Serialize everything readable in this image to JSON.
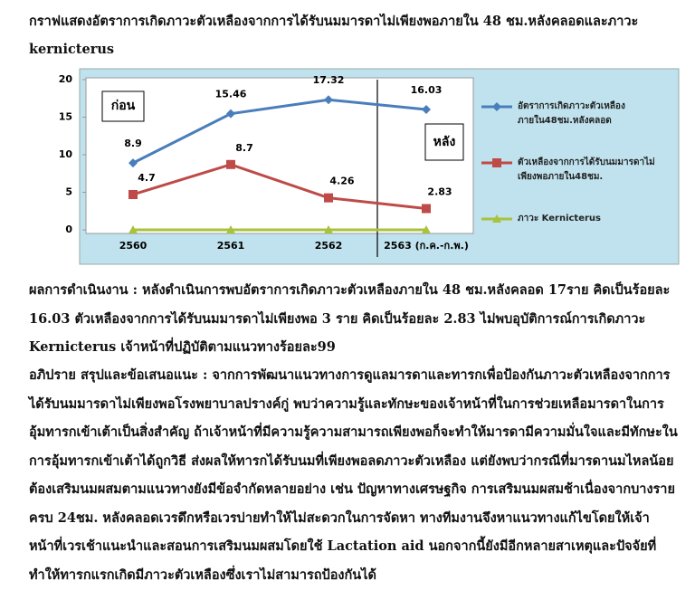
{
  "heading": "กราฟแสดงอัตราการเกิดภาวะตัวเหลืองจากการได้รับนมมารดาไม่เพียงพอภายใน 48 ชม.หลังคลอดและภาวะ kernicterus",
  "chart_data": {
    "type": "line",
    "categories": [
      "2560",
      "2561",
      "2562",
      "2563 (ก.ค.-ก.พ.)"
    ],
    "series": [
      {
        "name": "อัตราการเกิดภาวะตัวเหลืองภายใน48ชม.หลังคลอด",
        "color": "#4a7ebb",
        "marker": "diamond",
        "values": [
          8.9,
          15.46,
          17.32,
          16.03
        ]
      },
      {
        "name": "ตัวเหลืองจากการได้รับนมมารดาไม่เพียงพอภายใน48ชม.",
        "color": "#be4b48",
        "marker": "square",
        "values": [
          4.7,
          8.7,
          4.26,
          2.83
        ]
      },
      {
        "name": "ภาวะ Kernicterus",
        "color": "#a8c23c",
        "marker": "triangle",
        "values": [
          0,
          0,
          0,
          0
        ]
      }
    ],
    "ylim": [
      0,
      20
    ],
    "yticks": [
      0,
      5,
      10,
      15,
      20
    ],
    "annotations": [
      "ก่อน",
      "หลัง"
    ]
  },
  "paragraphs": [
    "ผลการดำเนินงาน : หลังดำเนินการพบอัตราการเกิดภาวะตัวเหลืองภายใน 48 ชม.หลังคลอด 17ราย คิดเป็นร้อยละ 16.03 ตัวเหลืองจากการได้รับนมมารดาไม่เพียงพอ 3 ราย คิดเป็นร้อยละ 2.83 ไม่พบอุบัติการณ์การเกิดภาวะ Kernicterus เจ้าหน้าที่ปฏิบัติตามแนวทางร้อยละ99",
    "อภิปราย สรุปและข้อเสนอแนะ : จากการพัฒนาแนวทางการดูแลมารดาและทารกเพื่อป้องกันภาวะตัวเหลืองจากการได้รับนมมารดาไม่เพียงพอโรงพยาบาลปรางค์กู่ พบว่าความรู้และทักษะของเจ้าหน้าที่ในการช่วยเหลือมารดาในการอุ้มทารกเข้าเต้าเป็นสิ่งสำคัญ ถ้าเจ้าหน้าที่มีความรู้ความสามารถเพียงพอก็จะทำให้มารดามีความมั่นใจและมีทักษะในการอุ้มทารกเข้าเต้าได้ถูกวิธี ส่งผลให้ทารกได้รับนมที่เพียงพอลดภาวะตัวเหลือง แต่ยังพบว่ากรณีที่มารดานมไหลน้อยต้องเสริมนมผสมตามแนวทางยังมีข้อจำกัดหลายอย่าง เช่น ปัญหาทางเศรษฐกิจ การเสริมนมผสมช้าเนื่องจากบางรายครบ 24ชม. หลังคลอดเวรดึกหรือเวรบ่ายทำให้ไม่สะดวกในการจัดหา ทางทีมงานจึงหาแนวทางแก้ไขโดยให้เจ้าหน้าที่เวรเช้าแนะนำและสอนการเสริมนมผสมโดยใช้ Lactation aid นอกจากนี้ยังมีอีกหลายสาเหตุและปัจจัยที่ทำให้ทารกแรกเกิดมีภาวะตัวเหลืองซึ่งเราไม่สามารถป้องกันได้"
  ]
}
